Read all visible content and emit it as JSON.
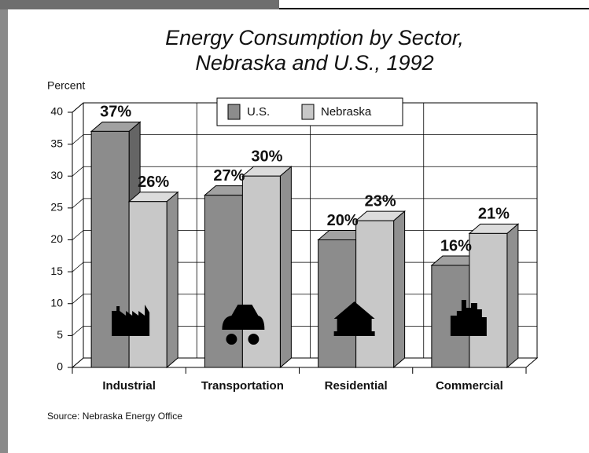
{
  "chart_data": {
    "type": "bar3d",
    "title": [
      "Energy Consumption by Sector,",
      "Nebraska and U.S., 1992"
    ],
    "y_label": "Percent",
    "source": "Source: Nebraska Energy Office",
    "categories": [
      "Industrial",
      "Transportation",
      "Residential",
      "Commercial"
    ],
    "series": [
      {
        "name": "U.S.",
        "color": "#8c8c8c",
        "values": [
          37,
          27,
          20,
          16
        ],
        "value_labels": [
          "37%",
          "27%",
          "20%",
          "16%"
        ]
      },
      {
        "name": "Nebraska",
        "color": "#c8c8c8",
        "values": [
          26,
          30,
          23,
          21
        ],
        "value_labels": [
          "26%",
          "30%",
          "23%",
          "21%"
        ]
      }
    ],
    "ylim": [
      0,
      40
    ],
    "yticks": [
      0,
      5,
      10,
      15,
      20,
      25,
      30,
      35,
      40
    ],
    "grid": true,
    "legend": "top"
  }
}
